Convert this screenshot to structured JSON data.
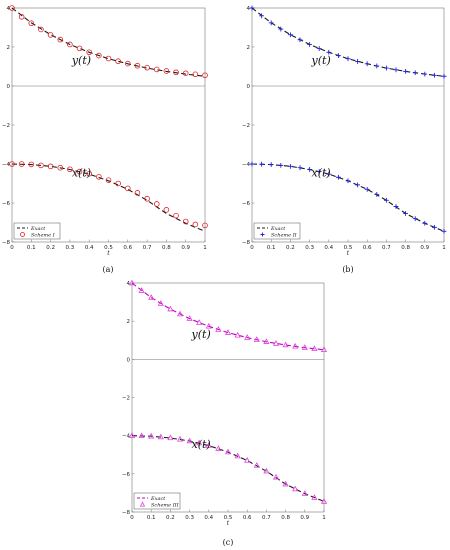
{
  "chart_data": [
    {
      "type": "line",
      "panel_label": "(a)",
      "xlabel": "t",
      "ylabel": "",
      "xlim": [
        0,
        1
      ],
      "ylim": [
        -8,
        4
      ],
      "x_ticks": [
        "0",
        "0.1",
        "0.2",
        "0.3",
        "0.4",
        "0.5",
        "0.6",
        "0.7",
        "0.8",
        "0.9",
        "1"
      ],
      "y_ticks": [
        "4",
        "2",
        "0",
        "−2",
        "−4",
        "−6",
        "−8"
      ],
      "curve_labels": {
        "y": "y(t)",
        "x": "x(t)"
      },
      "legend_position": "bottom-left",
      "grid": false,
      "series": [
        {
          "name": "Exact",
          "style": "dashed",
          "color": "#1a1a1a",
          "x": [
            0,
            0.1,
            0.2,
            0.3,
            0.4,
            0.5,
            0.6,
            0.7,
            0.8,
            0.9,
            1.0
          ],
          "y": [
            4.0,
            3.24,
            2.63,
            2.13,
            1.73,
            1.4,
            1.14,
            0.92,
            0.75,
            0.61,
            0.5
          ]
        },
        {
          "name": "Exact",
          "style": "dashed",
          "color": "#1a1a1a",
          "x": [
            0,
            0.1,
            0.2,
            0.3,
            0.4,
            0.5,
            0.6,
            0.7,
            0.8,
            0.9,
            1.0
          ],
          "y": [
            -4.0,
            -4.03,
            -4.12,
            -4.28,
            -4.52,
            -4.86,
            -5.3,
            -5.86,
            -6.54,
            -7.04,
            -7.45
          ]
        },
        {
          "name": "Scheme I",
          "marker": "circle",
          "color": "#e02020",
          "x": [
            0,
            0.05,
            0.1,
            0.15,
            0.2,
            0.25,
            0.3,
            0.35,
            0.4,
            0.45,
            0.5,
            0.55,
            0.6,
            0.65,
            0.7,
            0.75,
            0.8,
            0.85,
            0.9,
            0.95,
            1.0
          ],
          "y": [
            4.0,
            3.55,
            3.22,
            2.9,
            2.62,
            2.38,
            2.13,
            1.93,
            1.73,
            1.56,
            1.41,
            1.27,
            1.15,
            1.04,
            0.94,
            0.85,
            0.77,
            0.7,
            0.65,
            0.6,
            0.55
          ]
        },
        {
          "name": "Scheme I",
          "marker": "circle",
          "color": "#e02020",
          "x": [
            0,
            0.05,
            0.1,
            0.15,
            0.2,
            0.25,
            0.3,
            0.35,
            0.4,
            0.45,
            0.5,
            0.55,
            0.6,
            0.65,
            0.7,
            0.75,
            0.8,
            0.85,
            0.9,
            0.95,
            1.0
          ],
          "y": [
            -4.0,
            -4.0,
            -4.02,
            -4.07,
            -4.12,
            -4.19,
            -4.27,
            -4.39,
            -4.5,
            -4.66,
            -4.83,
            -5.0,
            -5.25,
            -5.48,
            -5.78,
            -6.05,
            -6.35,
            -6.65,
            -6.95,
            -7.1,
            -7.15
          ]
        }
      ]
    },
    {
      "type": "line",
      "panel_label": "(b)",
      "xlabel": "t",
      "ylabel": "",
      "xlim": [
        0,
        1
      ],
      "ylim": [
        -8,
        4
      ],
      "x_ticks": [
        "0",
        "0.1",
        "0.2",
        "0.3",
        "0.4",
        "0.5",
        "0.6",
        "0.7",
        "0.8",
        "0.9",
        "1"
      ],
      "y_ticks": [
        "4",
        "2",
        "0",
        "−2",
        "−4",
        "−6",
        "−8"
      ],
      "curve_labels": {
        "y": "y(t)",
        "x": "x(t)"
      },
      "legend_position": "bottom-left",
      "grid": false,
      "series": [
        {
          "name": "Exact",
          "style": "dashed",
          "color": "#1a1a1a",
          "x": [
            0,
            0.1,
            0.2,
            0.3,
            0.4,
            0.5,
            0.6,
            0.7,
            0.8,
            0.9,
            1.0
          ],
          "y": [
            4.0,
            3.24,
            2.63,
            2.13,
            1.73,
            1.4,
            1.14,
            0.92,
            0.75,
            0.61,
            0.5
          ]
        },
        {
          "name": "Exact",
          "style": "dashed",
          "color": "#1a1a1a",
          "x": [
            0,
            0.1,
            0.2,
            0.3,
            0.4,
            0.5,
            0.6,
            0.7,
            0.8,
            0.9,
            1.0
          ],
          "y": [
            -4.0,
            -4.03,
            -4.12,
            -4.28,
            -4.52,
            -4.86,
            -5.3,
            -5.86,
            -6.54,
            -7.04,
            -7.45
          ]
        },
        {
          "name": "Scheme II",
          "marker": "plus",
          "color": "#2020e0",
          "x": [
            0,
            0.05,
            0.1,
            0.15,
            0.2,
            0.25,
            0.3,
            0.35,
            0.4,
            0.45,
            0.5,
            0.55,
            0.6,
            0.65,
            0.7,
            0.75,
            0.8,
            0.85,
            0.9,
            0.95,
            1.0
          ],
          "y": [
            4.0,
            3.6,
            3.24,
            2.92,
            2.63,
            2.37,
            2.13,
            1.92,
            1.73,
            1.56,
            1.4,
            1.26,
            1.14,
            1.03,
            0.92,
            0.83,
            0.75,
            0.68,
            0.61,
            0.55,
            0.5
          ]
        },
        {
          "name": "Scheme II",
          "marker": "plus",
          "color": "#2020e0",
          "x": [
            0,
            0.05,
            0.1,
            0.15,
            0.2,
            0.25,
            0.3,
            0.35,
            0.4,
            0.45,
            0.5,
            0.55,
            0.6,
            0.65,
            0.7,
            0.75,
            0.8,
            0.85,
            0.9,
            0.95,
            1.0
          ],
          "y": [
            -4.0,
            -4.01,
            -4.03,
            -4.07,
            -4.12,
            -4.19,
            -4.28,
            -4.39,
            -4.52,
            -4.68,
            -4.86,
            -5.07,
            -5.3,
            -5.56,
            -5.86,
            -6.18,
            -6.54,
            -6.8,
            -7.04,
            -7.25,
            -7.45
          ]
        }
      ]
    },
    {
      "type": "line",
      "panel_label": "(c)",
      "xlabel": "t",
      "ylabel": "",
      "xlim": [
        0,
        1
      ],
      "ylim": [
        -8,
        4
      ],
      "x_ticks": [
        "0",
        "0.1",
        "0.2",
        "0.3",
        "0.4",
        "0.5",
        "0.6",
        "0.7",
        "0.8",
        "0.9",
        "1"
      ],
      "y_ticks": [
        "4",
        "2",
        "0",
        "−2",
        "−4",
        "−6",
        "−8"
      ],
      "curve_labels": {
        "y": "y(t)",
        "x": "x(t)"
      },
      "legend_position": "bottom-left",
      "grid": false,
      "series": [
        {
          "name": "Exact",
          "style": "dashed",
          "color": "#c000c0",
          "x": [
            0,
            0.1,
            0.2,
            0.3,
            0.4,
            0.5,
            0.6,
            0.7,
            0.8,
            0.9,
            1.0
          ],
          "y": [
            4.0,
            3.24,
            2.63,
            2.13,
            1.73,
            1.4,
            1.14,
            0.92,
            0.75,
            0.61,
            0.5
          ]
        },
        {
          "name": "Exact",
          "style": "dashed",
          "color": "#1a1a1a",
          "x": [
            0,
            0.1,
            0.2,
            0.3,
            0.4,
            0.5,
            0.6,
            0.7,
            0.8,
            0.9,
            1.0
          ],
          "y": [
            -4.0,
            -4.03,
            -4.12,
            -4.28,
            -4.52,
            -4.86,
            -5.3,
            -5.86,
            -6.54,
            -7.04,
            -7.45
          ]
        },
        {
          "name": "Scheme III",
          "marker": "triangle",
          "color": "#e040e0",
          "x": [
            0,
            0.05,
            0.1,
            0.15,
            0.2,
            0.25,
            0.3,
            0.35,
            0.4,
            0.45,
            0.5,
            0.55,
            0.6,
            0.65,
            0.7,
            0.75,
            0.8,
            0.85,
            0.9,
            0.95,
            1.0
          ],
          "y": [
            4.0,
            3.6,
            3.24,
            2.92,
            2.63,
            2.37,
            2.13,
            1.92,
            1.73,
            1.56,
            1.4,
            1.26,
            1.14,
            1.03,
            0.92,
            0.83,
            0.75,
            0.68,
            0.61,
            0.55,
            0.5
          ]
        },
        {
          "name": "Scheme III",
          "marker": "triangle",
          "color": "#e040e0",
          "x": [
            0,
            0.05,
            0.1,
            0.15,
            0.2,
            0.25,
            0.3,
            0.35,
            0.4,
            0.45,
            0.5,
            0.55,
            0.6,
            0.65,
            0.7,
            0.75,
            0.8,
            0.85,
            0.9,
            0.95,
            1.0
          ],
          "y": [
            -4.0,
            -4.01,
            -4.03,
            -4.07,
            -4.12,
            -4.19,
            -4.28,
            -4.39,
            -4.52,
            -4.68,
            -4.86,
            -5.07,
            -5.3,
            -5.56,
            -5.86,
            -6.18,
            -6.54,
            -6.8,
            -7.04,
            -7.25,
            -7.45
          ]
        }
      ]
    }
  ]
}
